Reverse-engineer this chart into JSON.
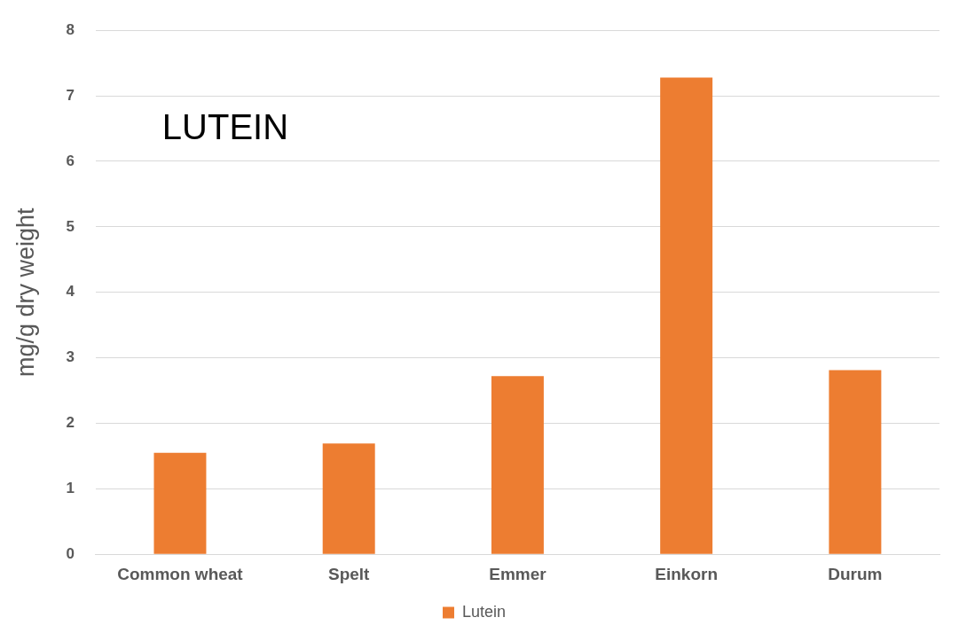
{
  "chart_data": {
    "type": "bar",
    "title": "LUTEIN",
    "ylabel": "mg/g dry weight",
    "categories": [
      "Common wheat",
      "Spelt",
      "Emmer",
      "Einkorn",
      "Durum"
    ],
    "series": [
      {
        "name": "Lutein",
        "color": "#ed7d31",
        "values": [
          1.55,
          1.69,
          2.72,
          7.28,
          2.81
        ]
      }
    ],
    "ylim": [
      0,
      8
    ],
    "yticks": [
      0,
      1,
      2,
      3,
      4,
      5,
      6,
      7,
      8
    ],
    "grid": "y",
    "legend": "bottom"
  }
}
